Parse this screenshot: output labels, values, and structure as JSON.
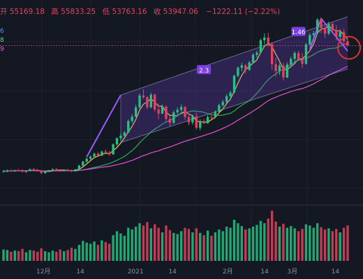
{
  "header": {
    "open_label": "开",
    "open": "55169.18",
    "high_label": "高",
    "high": "55833.25",
    "low_label": "低",
    "low": "53763.16",
    "close_label": "收",
    "close": "53947.06",
    "change": "−1222.11 (−2.22%)"
  },
  "legend_fragments": [
    {
      "text": "6",
      "color": "#4f8ff7"
    },
    {
      "text": "8",
      "color": "#5fd38d"
    },
    {
      "text": "9",
      "color": "#e65ad0"
    }
  ],
  "annotations": [
    {
      "text": "2.3"
    },
    {
      "text": "1.46"
    }
  ],
  "colors": {
    "up": "#26c281",
    "down": "#e0435e",
    "ma_fast": "#f2c94c",
    "ma_mid": "#27ae60",
    "ma_slow": "#e84fd6",
    "channel": "#8a4ff0",
    "background": "#141823",
    "label_bg": "#7b3fe4",
    "circle": "#e0342c",
    "last_price_line": "#e0435e"
  },
  "chart_data": {
    "type": "candlestick",
    "x_tick_labels": [
      "12月",
      "14",
      "2021",
      "14",
      "2月",
      "14",
      "3月",
      "14"
    ],
    "y_range": [
      10000,
      62000
    ],
    "ohlc": [
      [
        18800,
        19400,
        18600,
        19000
      ],
      [
        19000,
        19500,
        18700,
        19200
      ],
      [
        19200,
        19600,
        18900,
        19100
      ],
      [
        19100,
        19500,
        18800,
        19300
      ],
      [
        19300,
        19700,
        19000,
        19200
      ],
      [
        19200,
        19600,
        18700,
        18900
      ],
      [
        18900,
        19300,
        18500,
        19100
      ],
      [
        19100,
        19800,
        19000,
        19600
      ],
      [
        19600,
        19900,
        19200,
        19400
      ],
      [
        19400,
        19700,
        18900,
        19000
      ],
      [
        19000,
        19300,
        18300,
        18500
      ],
      [
        18500,
        19200,
        18300,
        19000
      ],
      [
        19000,
        19400,
        18800,
        19300
      ],
      [
        19300,
        19800,
        19100,
        19600
      ],
      [
        19600,
        19900,
        19200,
        19300
      ],
      [
        19300,
        19600,
        18900,
        19100
      ],
      [
        19100,
        19600,
        18900,
        19400
      ],
      [
        19400,
        19700,
        19000,
        19200
      ],
      [
        19200,
        19500,
        18800,
        19000
      ],
      [
        19000,
        19700,
        18900,
        19500
      ],
      [
        19500,
        20800,
        19300,
        20600
      ],
      [
        20600,
        21900,
        20400,
        21700
      ],
      [
        21700,
        22800,
        21300,
        22500
      ],
      [
        22500,
        23400,
        22000,
        23100
      ],
      [
        23100,
        24200,
        22700,
        23900
      ],
      [
        23900,
        24300,
        23000,
        23400
      ],
      [
        23400,
        24800,
        23200,
        24500
      ],
      [
        24500,
        25100,
        23800,
        24200
      ],
      [
        24200,
        24700,
        23300,
        23700
      ],
      [
        23700,
        26800,
        23600,
        26500
      ],
      [
        26500,
        28500,
        26100,
        28200
      ],
      [
        28200,
        29600,
        27600,
        28900
      ],
      [
        28900,
        30200,
        28600,
        29800
      ],
      [
        29800,
        33500,
        29600,
        33000
      ],
      [
        33000,
        34900,
        32400,
        34200
      ],
      [
        34200,
        37500,
        34000,
        36800
      ],
      [
        36800,
        40600,
        36500,
        40100
      ],
      [
        40100,
        41900,
        39200,
        39600
      ],
      [
        39600,
        39900,
        36300,
        36800
      ],
      [
        36800,
        40900,
        36500,
        40300
      ],
      [
        40300,
        40700,
        35700,
        36200
      ],
      [
        36200,
        37800,
        33500,
        35100
      ],
      [
        35100,
        37600,
        34900,
        37000
      ],
      [
        37000,
        37400,
        32800,
        33600
      ],
      [
        33600,
        34400,
        31500,
        32500
      ],
      [
        32500,
        35900,
        32200,
        35400
      ],
      [
        35400,
        36800,
        34600,
        36100
      ],
      [
        36100,
        37600,
        35500,
        36900
      ],
      [
        36900,
        37100,
        33400,
        34100
      ],
      [
        34100,
        34600,
        31800,
        32600
      ],
      [
        32600,
        34800,
        32000,
        34300
      ],
      [
        34300,
        35300,
        30700,
        31100
      ],
      [
        31100,
        33500,
        30400,
        33000
      ],
      [
        33000,
        33600,
        32100,
        32400
      ],
      [
        32400,
        34600,
        32200,
        34100
      ],
      [
        34100,
        34700,
        33500,
        34000
      ],
      [
        34000,
        35900,
        33800,
        35600
      ],
      [
        35600,
        37800,
        35300,
        37400
      ],
      [
        37400,
        38900,
        36900,
        38300
      ],
      [
        38300,
        40500,
        38000,
        39900
      ],
      [
        39900,
        41400,
        38700,
        40900
      ],
      [
        40900,
        45900,
        40700,
        45600
      ],
      [
        45600,
        48200,
        45100,
        47800
      ],
      [
        47800,
        49200,
        46800,
        48500
      ],
      [
        48500,
        48900,
        46300,
        47200
      ],
      [
        47200,
        49700,
        47000,
        49300
      ],
      [
        49300,
        51900,
        48900,
        51400
      ],
      [
        51400,
        52600,
        50500,
        52000
      ],
      [
        52000,
        55900,
        51800,
        55500
      ],
      [
        55500,
        57400,
        54200,
        56200
      ],
      [
        56200,
        57500,
        53600,
        54400
      ],
      [
        54400,
        54800,
        47200,
        48800
      ],
      [
        48800,
        50600,
        45300,
        46900
      ],
      [
        46900,
        49100,
        45800,
        48400
      ],
      [
        48400,
        49200,
        44300,
        45100
      ],
      [
        45100,
        49300,
        44900,
        48700
      ],
      [
        48700,
        50900,
        48400,
        50300
      ],
      [
        50300,
        52400,
        49400,
        51900
      ],
      [
        51900,
        52500,
        49700,
        50100
      ],
      [
        50100,
        51900,
        47800,
        48900
      ],
      [
        48900,
        54700,
        48700,
        54300
      ],
      [
        54300,
        57500,
        53900,
        56900
      ],
      [
        56900,
        58100,
        55200,
        57400
      ],
      [
        57400,
        61600,
        57200,
        61200
      ],
      [
        61200,
        61800,
        57400,
        58900
      ],
      [
        58900,
        59600,
        56100,
        57300
      ],
      [
        57300,
        60700,
        56900,
        60000
      ],
      [
        60000,
        60400,
        57600,
        58300
      ],
      [
        58300,
        59700,
        55400,
        56400
      ],
      [
        56400,
        58500,
        55300,
        57700
      ],
      [
        57700,
        58600,
        53800,
        55200
      ],
      [
        55200,
        55833,
        53763,
        53947
      ]
    ],
    "volume": [
      20,
      19,
      16,
      18,
      17,
      21,
      15,
      19,
      18,
      16,
      22,
      17,
      15,
      18,
      16,
      20,
      17,
      19,
      23,
      21,
      28,
      35,
      32,
      30,
      34,
      28,
      36,
      33,
      30,
      45,
      52,
      48,
      44,
      58,
      55,
      60,
      66,
      62,
      68,
      57,
      64,
      58,
      50,
      62,
      54,
      49,
      47,
      52,
      58,
      56,
      50,
      57,
      49,
      45,
      53,
      44,
      50,
      55,
      52,
      60,
      58,
      72,
      66,
      61,
      55,
      57,
      60,
      63,
      70,
      66,
      74,
      88,
      69,
      60,
      65,
      58,
      61,
      57,
      52,
      56,
      64,
      62,
      58,
      66,
      59,
      55,
      57,
      52,
      56,
      50,
      58,
      62
    ]
  }
}
